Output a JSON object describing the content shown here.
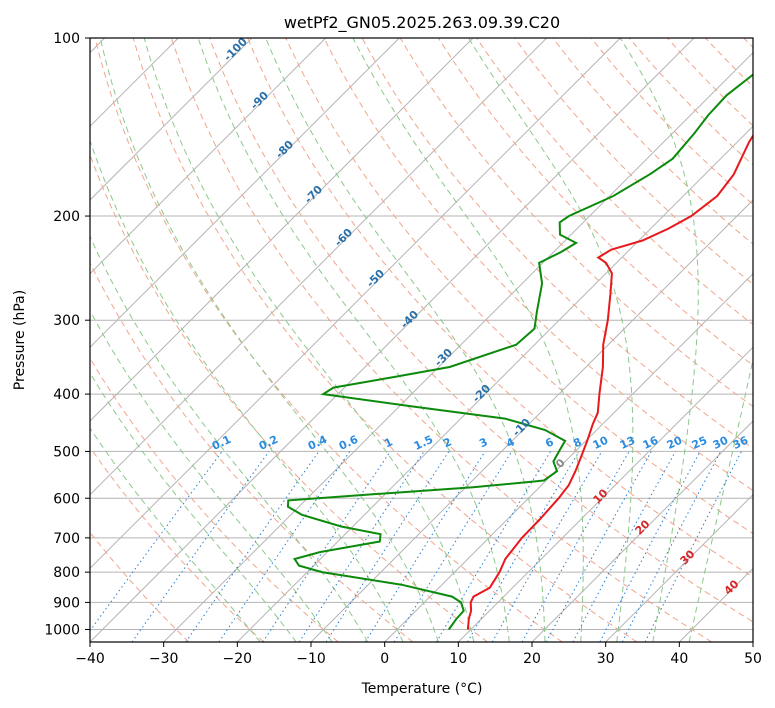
{
  "chart_data": {
    "type": "line",
    "title": "wetPf2_GN05.2025.263.09.39.C20",
    "xlabel": "Temperature (°C)",
    "ylabel": "Pressure (hPa)",
    "xlim": [
      -40,
      50
    ],
    "ylim": [
      1050,
      100
    ],
    "y_scale": "log",
    "skew": "skew-T log-p",
    "grid": true,
    "x_ticks": [
      "−40",
      "−30",
      "−20",
      "−10",
      "0",
      "10",
      "20",
      "30",
      "40",
      "50"
    ],
    "x_tick_values": [
      -40,
      -30,
      -20,
      -10,
      0,
      10,
      20,
      30,
      40,
      50
    ],
    "y_ticks": [
      "100",
      "200",
      "300",
      "400",
      "500",
      "600",
      "700",
      "800",
      "900",
      "1000"
    ],
    "y_tick_values": [
      100,
      200,
      300,
      400,
      500,
      600,
      700,
      800,
      900,
      1000
    ],
    "series": [
      {
        "role": "temperature",
        "color": "#e8191c",
        "points": [
          {
            "p": 1000,
            "t": 9.6
          },
          {
            "p": 960,
            "t": 8.3
          },
          {
            "p": 930,
            "t": 7.5
          },
          {
            "p": 900,
            "t": 6.3
          },
          {
            "p": 880,
            "t": 5.9
          },
          {
            "p": 850,
            "t": 6.9
          },
          {
            "p": 800,
            "t": 6.1
          },
          {
            "p": 760,
            "t": 5.1
          },
          {
            "p": 700,
            "t": 4.5
          },
          {
            "p": 650,
            "t": 4.4
          },
          {
            "p": 600,
            "t": 4.1
          },
          {
            "p": 570,
            "t": 3.7
          },
          {
            "p": 540,
            "t": 2.7
          },
          {
            "p": 510,
            "t": 1.5
          },
          {
            "p": 480,
            "t": 0.2
          },
          {
            "p": 450,
            "t": -1.3
          },
          {
            "p": 430,
            "t": -2.2
          },
          {
            "p": 400,
            "t": -4.5
          },
          {
            "p": 360,
            "t": -7.7
          },
          {
            "p": 330,
            "t": -10.7
          },
          {
            "p": 300,
            "t": -13.4
          },
          {
            "p": 270,
            "t": -16.7
          },
          {
            "p": 250,
            "t": -19.2
          },
          {
            "p": 240,
            "t": -21.4
          },
          {
            "p": 235,
            "t": -23.2
          },
          {
            "p": 228,
            "t": -22.5
          },
          {
            "p": 220,
            "t": -19.5
          },
          {
            "p": 210,
            "t": -17.6
          },
          {
            "p": 200,
            "t": -16.2
          },
          {
            "p": 185,
            "t": -15.4
          },
          {
            "p": 170,
            "t": -16.1
          },
          {
            "p": 150,
            "t": -18.4
          },
          {
            "p": 140,
            "t": -19.3
          },
          {
            "p": 125,
            "t": -20.8
          },
          {
            "p": 115,
            "t": -22.7
          },
          {
            "p": 100,
            "t": -26.1
          }
        ]
      },
      {
        "role": "dewpoint",
        "color": "#0b8a0b",
        "points": [
          {
            "p": 1000,
            "t": 7.0
          },
          {
            "p": 960,
            "t": 6.6
          },
          {
            "p": 930,
            "t": 6.5
          },
          {
            "p": 900,
            "t": 5.0
          },
          {
            "p": 880,
            "t": 3.0
          },
          {
            "p": 840,
            "t": -5.5
          },
          {
            "p": 800,
            "t": -18.0
          },
          {
            "p": 780,
            "t": -22.0
          },
          {
            "p": 760,
            "t": -23.5
          },
          {
            "p": 740,
            "t": -21.0
          },
          {
            "p": 710,
            "t": -14.3
          },
          {
            "p": 690,
            "t": -15.2
          },
          {
            "p": 670,
            "t": -21.5
          },
          {
            "p": 640,
            "t": -28.5
          },
          {
            "p": 620,
            "t": -31.5
          },
          {
            "p": 605,
            "t": -32.3
          },
          {
            "p": 590,
            "t": -21.0
          },
          {
            "p": 575,
            "t": -9.0
          },
          {
            "p": 560,
            "t": -0.3
          },
          {
            "p": 540,
            "t": 0.2
          },
          {
            "p": 520,
            "t": -1.6
          },
          {
            "p": 500,
            "t": -2.2
          },
          {
            "p": 480,
            "t": -2.8
          },
          {
            "p": 460,
            "t": -7.0
          },
          {
            "p": 440,
            "t": -14.0
          },
          {
            "p": 420,
            "t": -28.0
          },
          {
            "p": 400,
            "t": -42.0
          },
          {
            "p": 390,
            "t": -41.5
          },
          {
            "p": 375,
            "t": -35.0
          },
          {
            "p": 360,
            "t": -28.5
          },
          {
            "p": 330,
            "t": -22.5
          },
          {
            "p": 310,
            "t": -22.2
          },
          {
            "p": 290,
            "t": -24.2
          },
          {
            "p": 260,
            "t": -27.3
          },
          {
            "p": 240,
            "t": -30.5
          },
          {
            "p": 230,
            "t": -29.0
          },
          {
            "p": 222,
            "t": -28.2
          },
          {
            "p": 215,
            "t": -31.5
          },
          {
            "p": 205,
            "t": -33.2
          },
          {
            "p": 200,
            "t": -32.8
          },
          {
            "p": 185,
            "t": -29.5
          },
          {
            "p": 170,
            "t": -27.5
          },
          {
            "p": 160,
            "t": -26.5
          },
          {
            "p": 145,
            "t": -27.0
          },
          {
            "p": 135,
            "t": -27.6
          },
          {
            "p": 125,
            "t": -27.8
          },
          {
            "p": 115,
            "t": -27.0
          },
          {
            "p": 100,
            "t": -25.0
          }
        ]
      }
    ],
    "dry_adiabat_labels": [
      "-100",
      "-90",
      "-80",
      "-70",
      "-60",
      "-50",
      "-40",
      "-30",
      "-20",
      "-10"
    ],
    "mixing_ratio_labels": [
      "0.1",
      "0.2",
      "0.4",
      "0.6",
      "1",
      "1.5",
      "2",
      "3",
      "4",
      "6",
      "8",
      "10",
      "13",
      "16",
      "20",
      "25",
      "30",
      "36"
    ],
    "moist_adiabat_labels": [
      "0",
      "10",
      "20",
      "30",
      "40"
    ],
    "colors": {
      "isotherm": "#b4b4b4",
      "isobar": "#b4b4b4",
      "dry_adiabat": "#f0a58c",
      "moist_adiabat": "#8cc88c",
      "mixing_ratio": "#2a7fd4",
      "dry_label": "#2a6fa8",
      "mixing_label": "#2a8ce0",
      "moist_zero_label": "#8c8c8c",
      "moist_label": "#d62728"
    }
  }
}
